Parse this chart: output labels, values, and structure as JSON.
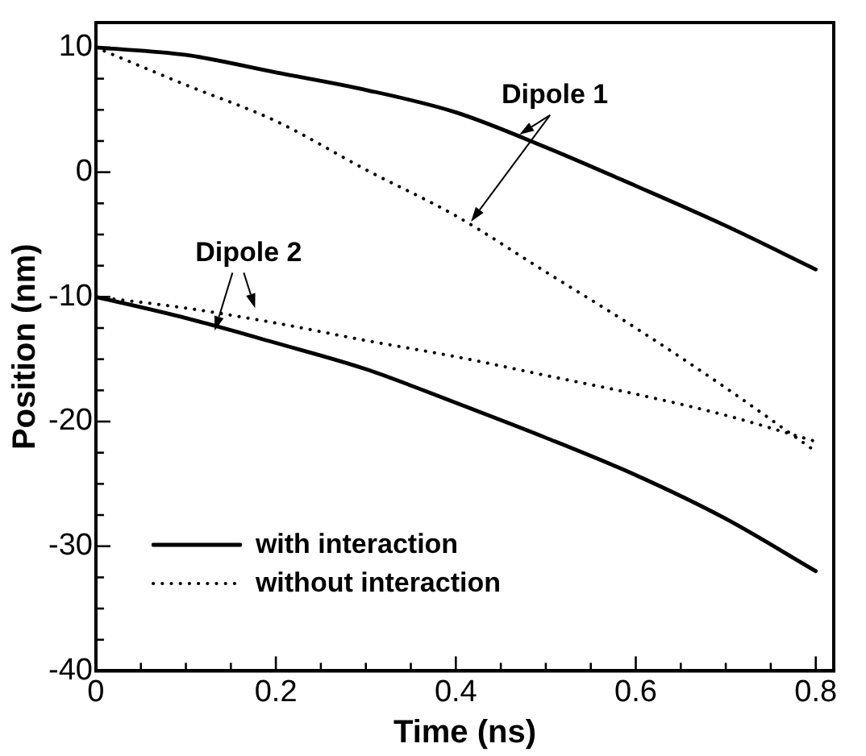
{
  "chart_data": {
    "type": "line",
    "xlabel": "Time (ns)",
    "ylabel": "Position (nm)",
    "x": [
      0,
      0.1,
      0.2,
      0.3,
      0.4,
      0.5,
      0.6,
      0.7,
      0.8
    ],
    "xlim": [
      0,
      0.82
    ],
    "xticks": [
      0,
      0.2,
      0.4,
      0.6,
      0.8
    ],
    "ylim": [
      -40,
      12
    ],
    "yticks": [
      -40,
      -30,
      -20,
      -10,
      0,
      10
    ],
    "grid": false,
    "legend": "bottom left",
    "marker": "none",
    "series": [
      {
        "name": "with interaction",
        "color": "#000000",
        "line_style": "solid",
        "values": [
          10,
          9.4,
          8.0,
          6.6,
          4.8,
          2.0,
          -1.1,
          -4.3,
          -7.8
        ]
      },
      {
        "name": "without interaction",
        "color": "#000000",
        "line_style": "dotted",
        "values": [
          10,
          7.0,
          4.1,
          0.2,
          -3.5,
          -8.0,
          -12.5,
          -17.3,
          -22.4
        ]
      },
      {
        "color": "#000000",
        "line_style": "solid",
        "values": [
          -10,
          -11.7,
          -13.7,
          -15.8,
          -18.5,
          -21.3,
          -24.3,
          -27.8,
          -32
        ]
      },
      {
        "color": "#000000",
        "line_style": "dotted",
        "values": [
          -10,
          -10.9,
          -12.1,
          -13.5,
          -14.8,
          -16.3,
          -17.8,
          -19.5,
          -21.6
        ]
      }
    ],
    "annotations": [
      "Dipole 1",
      "Dipole 2"
    ]
  }
}
